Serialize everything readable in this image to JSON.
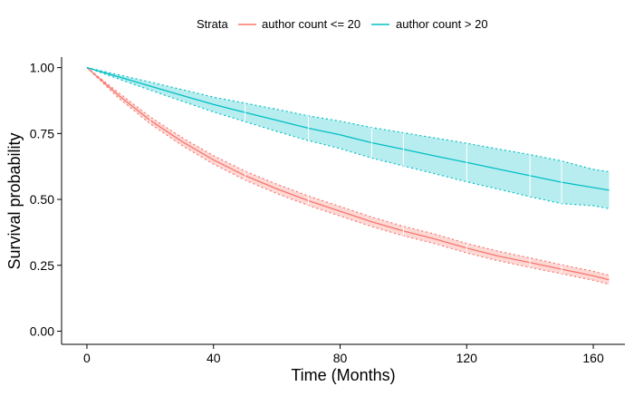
{
  "chart_data": {
    "type": "line",
    "title": "",
    "xlabel": "Time (Months)",
    "ylabel": "Survival probability",
    "xlim": [
      -8,
      170
    ],
    "ylim": [
      -0.05,
      1.04
    ],
    "x_ticks": [
      0,
      40,
      80,
      120,
      160
    ],
    "x_tick_labels": [
      "0",
      "40",
      "80",
      "120",
      "160"
    ],
    "y_ticks": [
      0.0,
      0.25,
      0.5,
      0.75,
      1.0
    ],
    "y_tick_labels": [
      "0.00",
      "0.25",
      "0.50",
      "0.75",
      "1.00"
    ],
    "grid": false,
    "legend": {
      "position": "top",
      "title": "Strata",
      "entries": [
        "author count <= 20",
        "author count > 20"
      ]
    },
    "series": [
      {
        "name": "author count <= 20",
        "color": "#F8766D",
        "x": [
          0,
          10,
          20,
          30,
          40,
          50,
          60,
          70,
          80,
          90,
          100,
          110,
          120,
          130,
          140,
          150,
          160,
          165
        ],
        "y": [
          1.0,
          0.895,
          0.8,
          0.72,
          0.65,
          0.59,
          0.54,
          0.495,
          0.455,
          0.415,
          0.38,
          0.35,
          0.315,
          0.285,
          0.26,
          0.235,
          0.21,
          0.195
        ],
        "ci_lower": [
          1.0,
          0.885,
          0.787,
          0.705,
          0.634,
          0.573,
          0.522,
          0.477,
          0.437,
          0.397,
          0.362,
          0.332,
          0.297,
          0.267,
          0.242,
          0.218,
          0.193,
          0.178
        ],
        "ci_upper": [
          1.0,
          0.905,
          0.813,
          0.735,
          0.666,
          0.607,
          0.558,
          0.513,
          0.473,
          0.433,
          0.398,
          0.368,
          0.333,
          0.303,
          0.278,
          0.252,
          0.227,
          0.212
        ],
        "censor_x": [
          20,
          50,
          70,
          100,
          120,
          140,
          150
        ]
      },
      {
        "name": "author count > 20",
        "color": "#00BFC4",
        "x": [
          0,
          10,
          20,
          30,
          40,
          50,
          60,
          70,
          80,
          90,
          100,
          110,
          120,
          130,
          140,
          150,
          160,
          165
        ],
        "y": [
          1.0,
          0.965,
          0.93,
          0.895,
          0.86,
          0.83,
          0.8,
          0.77,
          0.745,
          0.715,
          0.69,
          0.665,
          0.64,
          0.615,
          0.59,
          0.565,
          0.545,
          0.535
        ],
        "ci_lower": [
          1.0,
          0.957,
          0.915,
          0.873,
          0.832,
          0.795,
          0.758,
          0.723,
          0.693,
          0.657,
          0.627,
          0.597,
          0.567,
          0.539,
          0.51,
          0.484,
          0.476,
          0.465
        ],
        "ci_upper": [
          1.0,
          0.973,
          0.945,
          0.917,
          0.888,
          0.865,
          0.842,
          0.817,
          0.797,
          0.773,
          0.753,
          0.733,
          0.713,
          0.691,
          0.67,
          0.646,
          0.614,
          0.605
        ],
        "censor_x": [
          50,
          70,
          90,
          100,
          120,
          140,
          150
        ]
      }
    ]
  }
}
